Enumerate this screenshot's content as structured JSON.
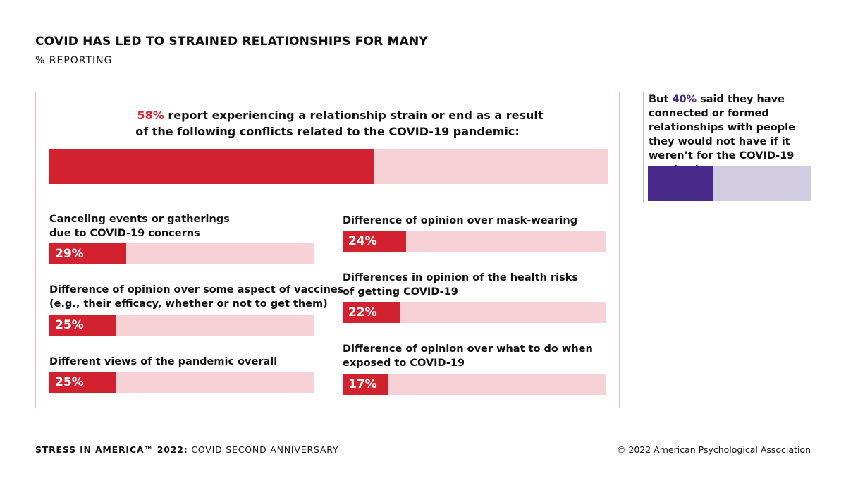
{
  "title": "COVID HAS LED TO STRAINED RELATIONSHIPS FOR MANY",
  "subtitle": "% REPORTING",
  "colors": {
    "accent_red": "#d3222f",
    "bar_track_pink": "#f6d1d6",
    "accent_purple": "#472a8a",
    "bar_track_lavender": "#d2cce3"
  },
  "headline": {
    "pct": "58%",
    "line1_rest": " report experiencing a relationship strain or end as a result",
    "line2": "of the following conflicts related to the COVID-19 pandemic:"
  },
  "side_note": {
    "prefix": "But ",
    "pct": "40%",
    "rest": " said they have connected or formed relationships with people they would not have if it weren’t for the COVID-19 pandemic"
  },
  "chart_data": [
    {
      "type": "bar",
      "categories": [
        "Relationship strain or end due to COVID-19 conflicts"
      ],
      "values": [
        58
      ],
      "ylim": [
        0,
        100
      ]
    },
    {
      "type": "bar",
      "categories": [
        "Canceling events or gatherings due to COVID-19 concerns",
        "Difference of opinion over some aspect of vaccines (e.g., their efficacy, whether or not to get them)",
        "Different views of the pandemic overall",
        "Difference of opinion over mask-wearing",
        "Differences in opinion of the health risks of getting COVID-19",
        "Difference of opinion over what to do when exposed to COVID-19"
      ],
      "labels": [
        [
          "Canceling events or gatherings",
          "due to COVID-19 concerns"
        ],
        [
          "Difference of opinion over some aspect of vaccines",
          "(e.g., their efficacy, whether or not to get them)"
        ],
        [
          "Different views of the pandemic overall"
        ],
        [
          "Difference of opinion over mask-wearing"
        ],
        [
          "Differences in opinion of the health risks",
          "of getting COVID-19"
        ],
        [
          "Difference of opinion over what to do when",
          "exposed to COVID-19"
        ]
      ],
      "values": [
        29,
        25,
        25,
        24,
        22,
        17
      ],
      "value_labels": [
        "29%",
        "25%",
        "25%",
        "24%",
        "22%",
        "17%"
      ],
      "ylim": [
        0,
        100
      ]
    },
    {
      "type": "bar",
      "categories": [
        "Connected or formed relationships due to COVID-19"
      ],
      "values": [
        40
      ],
      "ylim": [
        0,
        100
      ]
    }
  ],
  "footer": {
    "left_bold": "STRESS IN AMERICA™ 2022:",
    "left_rest": " COVID SECOND ANNIVERSARY",
    "right": "© 2022 American Psychological Association"
  }
}
